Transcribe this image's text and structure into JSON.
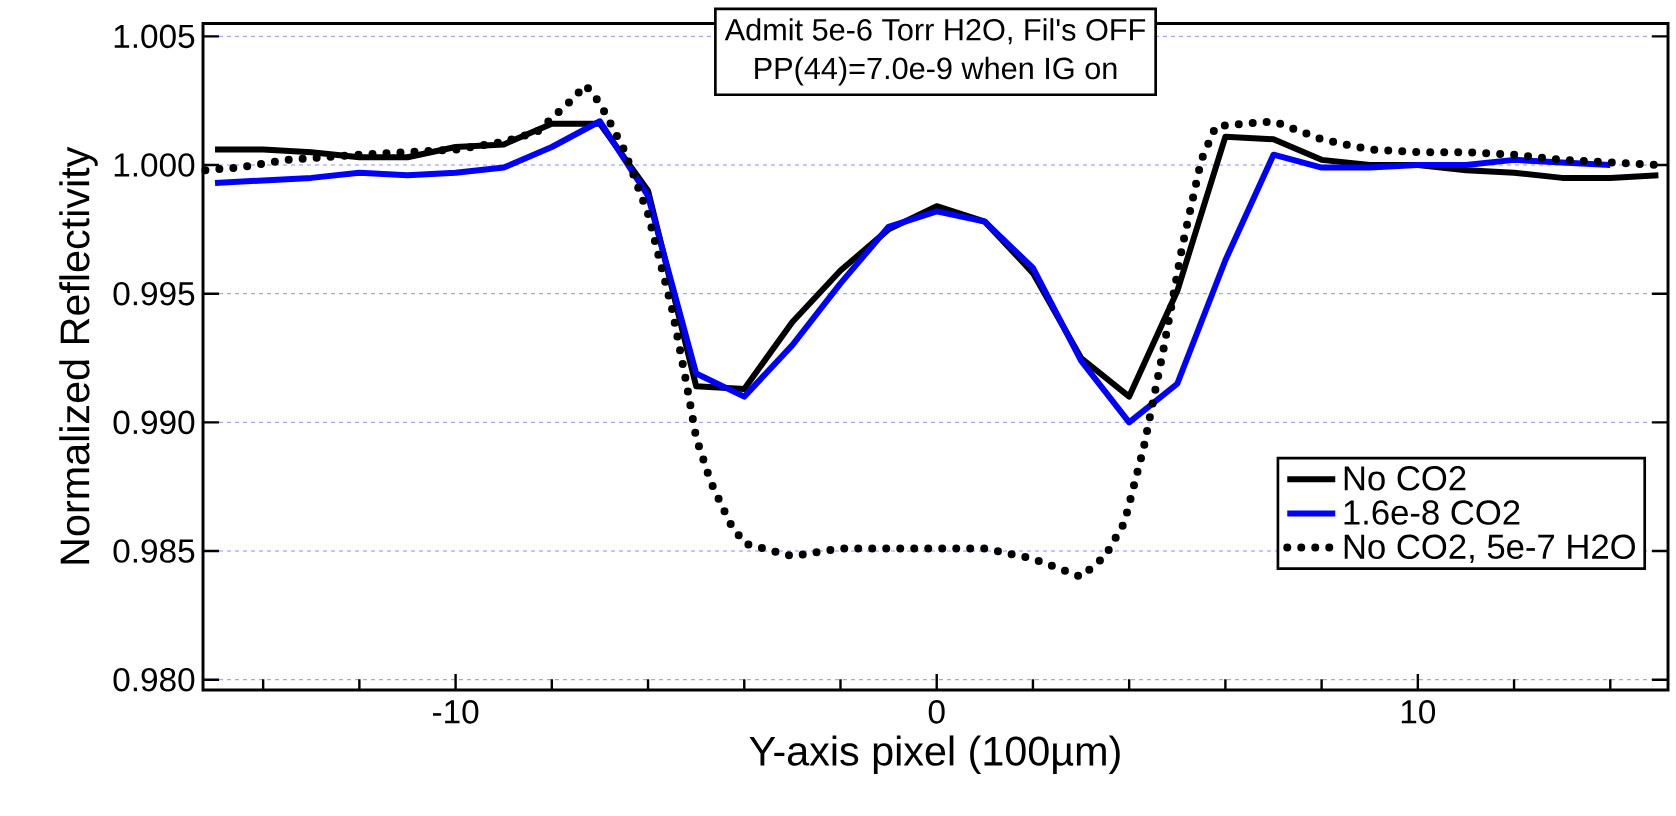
{
  "chart_data": {
    "type": "line",
    "xlabel": "Y-axis pixel (100µm)",
    "ylabel": "Normalized Reflectivity",
    "annotations": [
      "Admit 5e-6 Torr H2O, Fil's OFF",
      "PP(44)=7.0e-9 when IG on"
    ],
    "xlim": [
      -15.25,
      15.2
    ],
    "ylim": [
      0.9796,
      1.0055
    ],
    "xticks": [
      {
        "value": -14,
        "label": null
      },
      {
        "value": -12,
        "label": null
      },
      -10,
      {
        "value": -8,
        "label": null
      },
      {
        "value": -6,
        "label": null
      },
      {
        "value": -4,
        "label": null
      },
      {
        "value": -2,
        "label": null
      },
      0,
      {
        "value": 2,
        "label": null
      },
      {
        "value": 4,
        "label": null
      },
      {
        "value": 6,
        "label": null
      },
      {
        "value": 8,
        "label": null
      },
      10,
      {
        "value": 12,
        "label": null
      },
      {
        "value": 14,
        "label": null
      }
    ],
    "yticks": [
      {
        "value": 0.98,
        "label": "0.980"
      },
      {
        "value": 0.985,
        "label": "0.985"
      },
      {
        "value": 0.99,
        "label": "0.990"
      },
      {
        "value": 0.995,
        "label": "0.995"
      },
      {
        "value": 1.0,
        "label": "1.000"
      },
      {
        "value": 1.005,
        "label": "1.005"
      }
    ],
    "grid": "y",
    "legend": "bottom right",
    "series": [
      {
        "name": "No CO2",
        "color": "#000000",
        "line_style": "solid",
        "x": [
          -15,
          -14,
          -13,
          -12,
          -11,
          -10,
          -9,
          -8,
          -7,
          -6,
          -5,
          -4,
          -3,
          -2,
          -1,
          0,
          1,
          2,
          3,
          4,
          5,
          6,
          7,
          8,
          9,
          10,
          11,
          12,
          13,
          14,
          15
        ],
        "values": [
          1.0006,
          1.0006,
          1.0005,
          1.0003,
          1.0003,
          1.0007,
          1.0008,
          1.0016,
          1.0016,
          0.999,
          0.9914,
          0.9913,
          0.9939,
          0.9959,
          0.9975,
          0.9984,
          0.9978,
          0.9958,
          0.9925,
          0.991,
          0.9951,
          1.0011,
          1.001,
          1.0002,
          1.0,
          1.0,
          0.9998,
          0.9997,
          0.9995,
          0.9995,
          0.9996
        ]
      },
      {
        "name": "1.6e-8 CO2",
        "color": "#0000ff",
        "line_style": "solid",
        "x": [
          -15,
          -14,
          -13,
          -12,
          -11,
          -10,
          -9,
          -8,
          -7,
          -6,
          -5,
          -4,
          -3,
          -2,
          -1,
          0,
          1,
          2,
          3,
          4,
          5,
          6,
          7,
          8,
          9,
          10,
          11,
          12,
          13,
          14
        ],
        "values": [
          0.9993,
          0.9994,
          0.9995,
          0.9997,
          0.9996,
          0.9997,
          0.9999,
          1.0007,
          1.0017,
          0.9988,
          0.9919,
          0.991,
          0.993,
          0.9954,
          0.9976,
          0.9982,
          0.9978,
          0.996,
          0.9924,
          0.99,
          0.9915,
          0.9963,
          1.0004,
          0.9999,
          0.9999,
          1.0,
          1.0,
          1.0002,
          1.0001,
          1.0
        ]
      },
      {
        "name": "No CO2, 5e-7 H2O",
        "color": "#000000",
        "line_style": "dotted",
        "x": [
          -15.2,
          -14.5,
          -13.5,
          -12,
          -10,
          -9,
          -8.3,
          -7.6,
          -7.3,
          -7,
          -6.5,
          -6,
          -5.5,
          -5.2,
          -5,
          -4.7,
          -4.3,
          -4,
          -3,
          -2,
          -1,
          0,
          1,
          2,
          3,
          3.5,
          3.9,
          4.3,
          4.7,
          5.1,
          5.5,
          5.8,
          7,
          8,
          9,
          10,
          11,
          12,
          13,
          14,
          15
        ],
        "values": [
          0.9998,
          0.9999,
          1.0002,
          1.0004,
          1.0006,
          1.0009,
          1.0013,
          1.0025,
          1.0031,
          1.0024,
          1.0006,
          0.9981,
          0.9944,
          0.9915,
          0.9894,
          0.9877,
          0.9861,
          0.9853,
          0.9848,
          0.9851,
          0.9851,
          0.9851,
          0.9851,
          0.9847,
          0.984,
          0.9848,
          0.9861,
          0.989,
          0.9927,
          0.9968,
          1.0002,
          1.0015,
          1.0017,
          1.001,
          1.0006,
          1.0005,
          1.0005,
          1.0004,
          1.0002,
          1.0001,
          1.0
        ]
      }
    ]
  }
}
